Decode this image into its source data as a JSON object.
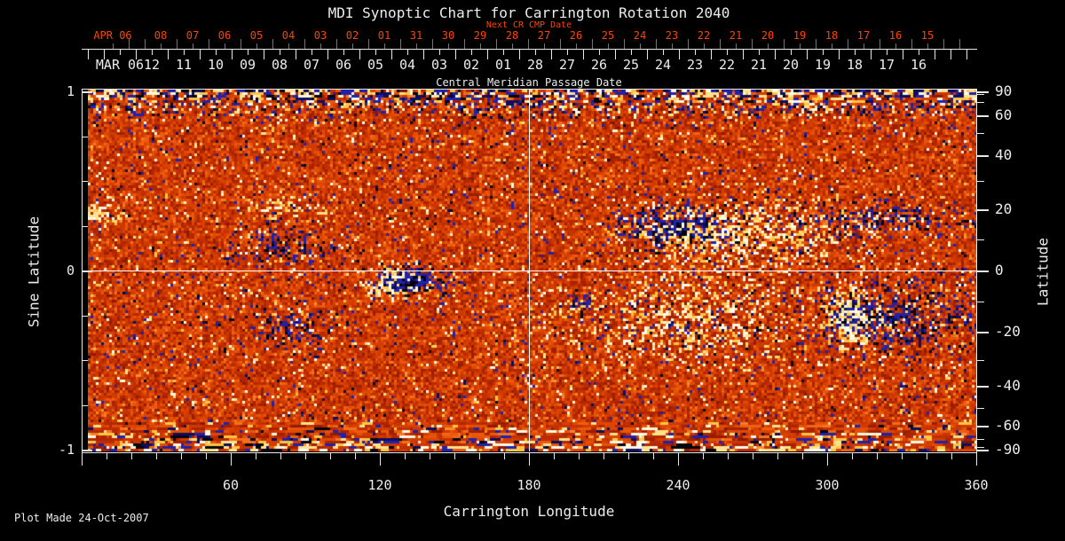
{
  "title": "MDI Synoptic Chart for Carrington Rotation 2040",
  "footer": "Plot Made 24-Oct-2007",
  "colors": {
    "background": "#000000",
    "axis_text": "#ededed",
    "next_cr_axis": "#ff4400",
    "frame": "#e8e8e8",
    "reference_line": "#ffffff"
  },
  "top_axis": {
    "label": "Next CR CMP Date",
    "month_label": "APR 06",
    "dates": [
      "08",
      "07",
      "06",
      "05",
      "04",
      "03",
      "02",
      "01",
      "31",
      "30",
      "29",
      "28",
      "27",
      "26",
      "25",
      "24",
      "23",
      "22",
      "21",
      "20",
      "19",
      "18",
      "17",
      "16",
      "15"
    ]
  },
  "cmp_axis": {
    "label": "Central Meridian Passage Date",
    "month_label": "MAR 06",
    "dates": [
      "12",
      "11",
      "10",
      "09",
      "08",
      "07",
      "06",
      "05",
      "04",
      "03",
      "02",
      "01",
      "28",
      "27",
      "26",
      "25",
      "24",
      "23",
      "22",
      "21",
      "20",
      "19",
      "18",
      "17",
      "16"
    ]
  },
  "left_axis": {
    "label": "Sine Latitude",
    "ticks": [
      {
        "label": "1",
        "sine": 1
      },
      {
        "label": "0",
        "sine": 0
      },
      {
        "label": "-1",
        "sine": -1
      }
    ]
  },
  "right_axis": {
    "label": "Latitude",
    "ticks": [
      {
        "label": "90",
        "deg": 90
      },
      {
        "label": "60",
        "deg": 60
      },
      {
        "label": "40",
        "deg": 40
      },
      {
        "label": "20",
        "deg": 20
      },
      {
        "label": "0",
        "deg": 0
      },
      {
        "label": "-20",
        "deg": -20
      },
      {
        "label": "-40",
        "deg": -40
      },
      {
        "label": "-60",
        "deg": -60
      },
      {
        "label": "-90",
        "deg": -90
      }
    ]
  },
  "bottom_axis": {
    "label": "Carrington Longitude",
    "ticks": [
      {
        "label": "60",
        "deg": 60
      },
      {
        "label": "120",
        "deg": 120
      },
      {
        "label": "180",
        "deg": 180
      },
      {
        "label": "240",
        "deg": 240
      },
      {
        "label": "300",
        "deg": 300
      },
      {
        "label": "360",
        "deg": 360
      }
    ]
  },
  "chart_data": {
    "type": "heatmap",
    "title": "MDI Synoptic Chart for Carrington Rotation 2040",
    "xlabel": "Carrington Longitude",
    "ylabel_left": "Sine Latitude",
    "ylabel_right": "Latitude",
    "x_range": [
      0,
      360
    ],
    "x_major_ticks": [
      60,
      120,
      180,
      240,
      300,
      360
    ],
    "x_minor_tick_step_deg": 10,
    "y_sine_range": [
      -1,
      1
    ],
    "y_sine_labeled_ticks": [
      1,
      0,
      -1
    ],
    "y_sine_minor_tick_step": 0.25,
    "y_latitude_labeled_ticks": [
      90,
      60,
      40,
      20,
      0,
      -20,
      -40,
      -60,
      -90
    ],
    "y_latitude_minor_tick_step_deg": 10,
    "top_axis_next_cr_cmp_dates": {
      "first": "APR 06",
      "days": [
        "08",
        "07",
        "06",
        "05",
        "04",
        "03",
        "02",
        "01",
        "31",
        "30",
        "29",
        "28",
        "27",
        "26",
        "25",
        "24",
        "23",
        "22",
        "21",
        "20",
        "19",
        "18",
        "17",
        "16",
        "15"
      ]
    },
    "central_meridian_passage_dates": {
      "first": "MAR 06",
      "days": [
        "12",
        "11",
        "10",
        "09",
        "08",
        "07",
        "06",
        "05",
        "04",
        "03",
        "02",
        "01",
        "28",
        "27",
        "26",
        "25",
        "24",
        "23",
        "22",
        "21",
        "20",
        "19",
        "18",
        "17",
        "16"
      ]
    },
    "reference_lines": {
      "equator_sine_latitude": 0,
      "central_meridian_longitude_deg": 180
    },
    "colormap": {
      "positive_strong": "#fffae6",
      "positive_moderate": "#ffd24d",
      "background_field": [
        "#7d1600",
        "#b82800",
        "#dc4400",
        "#f06010",
        "#ffa040"
      ],
      "negative_moderate": "#2525b4",
      "negative_strong": "#05050f"
    },
    "polar_noise_bands": "high-contrast salt-and-pepper noise near |sine latitude| > 0.8 at top and bottom edges",
    "active_regions": [
      {
        "lon": 6,
        "sin_lat": 0.33,
        "extent_lon_deg": 7,
        "extent_sine": 0.05,
        "polarity": "positive",
        "strength": 0.9
      },
      {
        "lon": 80,
        "sin_lat": 0.34,
        "extent_lon_deg": 12,
        "extent_sine": 0.06,
        "polarity": "positive",
        "strength": 0.5
      },
      {
        "lon": 79,
        "sin_lat": 0.13,
        "extent_lon_deg": 18,
        "extent_sine": 0.09,
        "polarity": "negative",
        "strength": 0.55
      },
      {
        "lon": 86,
        "sin_lat": -0.32,
        "extent_lon_deg": 16,
        "extent_sine": 0.1,
        "polarity": "negative",
        "strength": 0.5
      },
      {
        "lon": 124,
        "sin_lat": -0.07,
        "extent_lon_deg": 9,
        "extent_sine": 0.07,
        "polarity": "positive",
        "strength": 1.0
      },
      {
        "lon": 134,
        "sin_lat": -0.05,
        "extent_lon_deg": 10,
        "extent_sine": 0.07,
        "polarity": "negative",
        "strength": 1.0
      },
      {
        "lon": 201,
        "sin_lat": -0.18,
        "extent_lon_deg": 5,
        "extent_sine": 0.035,
        "polarity": "negative",
        "strength": 0.75
      },
      {
        "lon": 237,
        "sin_lat": 0.25,
        "extent_lon_deg": 20,
        "extent_sine": 0.1,
        "polarity": "negative",
        "strength": 0.7
      },
      {
        "lon": 264,
        "sin_lat": 0.2,
        "extent_lon_deg": 35,
        "extent_sine": 0.16,
        "polarity": "positive",
        "strength": 0.55
      },
      {
        "lon": 240,
        "sin_lat": -0.27,
        "extent_lon_deg": 38,
        "extent_sine": 0.2,
        "polarity": "positive",
        "strength": 0.45
      },
      {
        "lon": 322,
        "sin_lat": 0.3,
        "extent_lon_deg": 26,
        "extent_sine": 0.07,
        "polarity": "negative",
        "strength": 0.6
      },
      {
        "lon": 309,
        "sin_lat": -0.27,
        "extent_lon_deg": 8,
        "extent_sine": 0.14,
        "polarity": "positive",
        "strength": 0.85
      },
      {
        "lon": 328,
        "sin_lat": -0.25,
        "extent_lon_deg": 26,
        "extent_sine": 0.16,
        "polarity": "negative",
        "strength": 0.6
      }
    ]
  }
}
